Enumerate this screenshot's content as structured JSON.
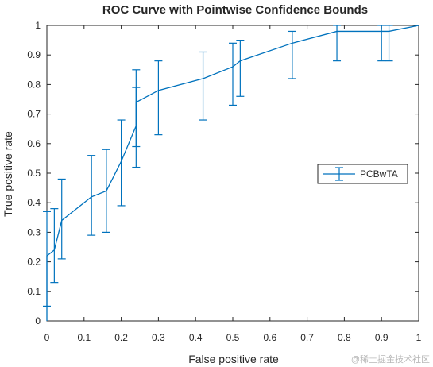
{
  "chart_data": {
    "type": "line",
    "title": "ROC Curve with Pointwise Confidence Bounds",
    "xlabel": "False positive rate",
    "ylabel": "True positive rate",
    "xlim": [
      0,
      1
    ],
    "ylim": [
      0,
      1
    ],
    "x_ticks": [
      "0",
      "0.1",
      "0.2",
      "0.3",
      "0.4",
      "0.5",
      "0.6",
      "0.7",
      "0.8",
      "0.9",
      "1"
    ],
    "y_ticks": [
      "0",
      "0.1",
      "0.2",
      "0.3",
      "0.4",
      "0.5",
      "0.6",
      "0.7",
      "0.8",
      "0.9",
      "1"
    ],
    "grid": false,
    "box": true,
    "legend": {
      "placement": "right-center",
      "entries": [
        "PCBwTA"
      ]
    },
    "series": [
      {
        "name": "PCBwTA",
        "color": "#0072bd",
        "x": [
          0,
          0,
          0.02,
          0.04,
          0.12,
          0.16,
          0.2,
          0.24,
          0.24,
          0.3,
          0.42,
          0.5,
          0.52,
          0.66,
          0.78,
          0.9,
          0.92,
          1
        ],
        "y": [
          0,
          0.22,
          0.24,
          0.34,
          0.42,
          0.44,
          0.54,
          0.66,
          0.74,
          0.78,
          0.82,
          0.86,
          0.88,
          0.94,
          0.98,
          0.98,
          0.98,
          1
        ],
        "errorbars": [
          {
            "x": 0,
            "low": 0.05,
            "high": 0.37
          },
          {
            "x": 0.02,
            "low": 0.13,
            "high": 0.38
          },
          {
            "x": 0.04,
            "low": 0.21,
            "high": 0.48
          },
          {
            "x": 0.12,
            "low": 0.29,
            "high": 0.56
          },
          {
            "x": 0.16,
            "low": 0.3,
            "high": 0.58
          },
          {
            "x": 0.2,
            "low": 0.39,
            "high": 0.68
          },
          {
            "x": 0.24,
            "low": 0.52,
            "high": 0.79
          },
          {
            "x": 0.24,
            "low": 0.59,
            "high": 0.85
          },
          {
            "x": 0.3,
            "low": 0.63,
            "high": 0.88
          },
          {
            "x": 0.42,
            "low": 0.68,
            "high": 0.91
          },
          {
            "x": 0.5,
            "low": 0.73,
            "high": 0.94
          },
          {
            "x": 0.52,
            "low": 0.76,
            "high": 0.95
          },
          {
            "x": 0.66,
            "low": 0.82,
            "high": 0.98
          },
          {
            "x": 0.78,
            "low": 0.88,
            "high": 1.0
          },
          {
            "x": 0.9,
            "low": 0.88,
            "high": 1.0
          },
          {
            "x": 0.92,
            "low": 0.88,
            "high": 1.0
          }
        ]
      }
    ]
  },
  "watermark": "@稀土掘金技术社区"
}
